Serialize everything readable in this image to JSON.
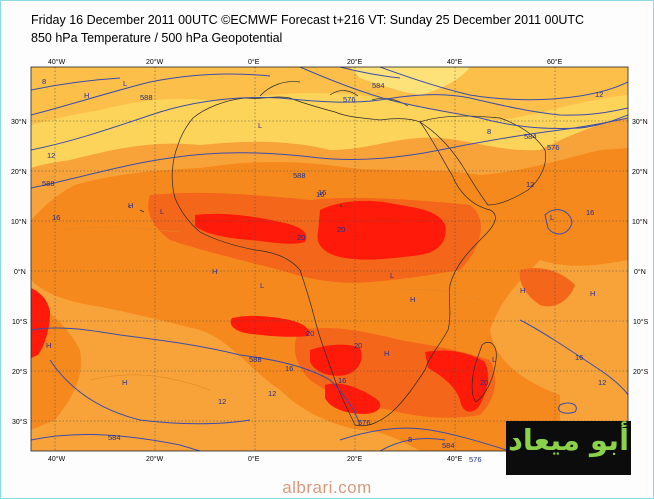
{
  "header": {
    "title_line1": "Friday 16 December 2011 00UTC ©ECMWF Forecast t+216 VT: Sunday 25 December 2011 00UTC",
    "title_line2": "850 hPa Temperature / 500 hPa Geopotential"
  },
  "map": {
    "lon_labels": [
      "40°W",
      "20°W",
      "0°E",
      "20°E",
      "40°E",
      "60°E"
    ],
    "lat_labels": [
      "30°N",
      "20°N",
      "10°N",
      "0°N",
      "10°S",
      "20°S",
      "30°S"
    ],
    "temperature_labels": [
      "8",
      "12",
      "16",
      "20",
      "20",
      "16",
      "12",
      "8",
      "12",
      "16",
      "20",
      "16",
      "12",
      "16",
      "12",
      "8",
      "20",
      "20",
      "16",
      "12",
      "16"
    ],
    "geopotential_labels": [
      "576",
      "584",
      "588",
      "584",
      "576",
      "588",
      "588",
      "584",
      "576",
      "588",
      "584",
      "576"
    ],
    "pressure_markers": [
      "H",
      "L",
      "H",
      "L",
      "H",
      "L",
      "H",
      "L",
      "H",
      "H",
      "L",
      "H",
      "L",
      "H",
      "L",
      "H"
    ],
    "colors": {
      "ocean_cool": "#f8a33a",
      "warm": "#f68a1e",
      "hot": "#f25a10",
      "hottest": "#ff0a0a",
      "cold_north": "#fdd45a",
      "isohypse": "#3d4da8",
      "grid": "#3a3a3a"
    }
  },
  "logo": {
    "text": "أبو ميعاد"
  },
  "watermark": {
    "text": "albrari.com"
  }
}
